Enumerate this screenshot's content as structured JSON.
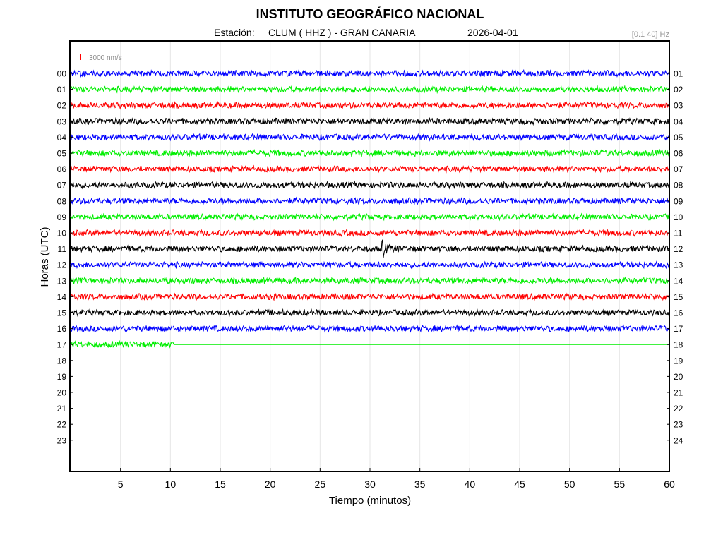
{
  "header": {
    "title": "INSTITUTO GEOGRÁFICO NACIONAL",
    "station_label": "Estación:",
    "station_name": "CLUM ( HHZ ) - GRAN CANARIA",
    "date": "2026-04-01",
    "filter": "[0.1 40] Hz",
    "scale_label": "3000 nm/s"
  },
  "colors": {
    "scale_marker": "#ff0000",
    "trace_cycle": [
      "#0000ff",
      "#00ee00",
      "#ff0000",
      "#000000"
    ],
    "grid": "#e6e6e6",
    "axis": "#000000"
  },
  "chart_data": {
    "type": "line",
    "title": "INSTITUTO GEOGRÁFICO NACIONAL",
    "xlabel": "Tiempo (minutos)",
    "ylabel": "Horas (UTC)",
    "xlim": [
      0,
      60
    ],
    "xticks": [
      5,
      10,
      15,
      20,
      25,
      30,
      35,
      40,
      45,
      50,
      55,
      60
    ],
    "grid": true,
    "left_labels": [
      "00",
      "01",
      "02",
      "03",
      "04",
      "05",
      "06",
      "07",
      "08",
      "09",
      "10",
      "11",
      "12",
      "13",
      "14",
      "15",
      "16",
      "17",
      "18",
      "19",
      "20",
      "21",
      "22",
      "23"
    ],
    "right_labels": [
      "01",
      "02",
      "03",
      "04",
      "05",
      "06",
      "07",
      "08",
      "09",
      "10",
      "11",
      "12",
      "13",
      "14",
      "15",
      "16",
      "17",
      "18",
      "19",
      "20",
      "21",
      "22",
      "23",
      "24"
    ],
    "traces": [
      {
        "hour": "00",
        "color": "#0000ff",
        "end_minute": 60
      },
      {
        "hour": "01",
        "color": "#00ee00",
        "end_minute": 60
      },
      {
        "hour": "02",
        "color": "#ff0000",
        "end_minute": 60
      },
      {
        "hour": "03",
        "color": "#000000",
        "end_minute": 60
      },
      {
        "hour": "04",
        "color": "#0000ff",
        "end_minute": 60
      },
      {
        "hour": "05",
        "color": "#00ee00",
        "end_minute": 60
      },
      {
        "hour": "06",
        "color": "#ff0000",
        "end_minute": 60
      },
      {
        "hour": "07",
        "color": "#000000",
        "end_minute": 60
      },
      {
        "hour": "08",
        "color": "#0000ff",
        "end_minute": 60
      },
      {
        "hour": "09",
        "color": "#00ee00",
        "end_minute": 60
      },
      {
        "hour": "10",
        "color": "#ff0000",
        "end_minute": 60
      },
      {
        "hour": "11",
        "color": "#000000",
        "end_minute": 60,
        "event_minute": 31.2
      },
      {
        "hour": "12",
        "color": "#0000ff",
        "end_minute": 60
      },
      {
        "hour": "13",
        "color": "#00ee00",
        "end_minute": 60
      },
      {
        "hour": "14",
        "color": "#ff0000",
        "end_minute": 60
      },
      {
        "hour": "15",
        "color": "#000000",
        "end_minute": 60
      },
      {
        "hour": "16",
        "color": "#0000ff",
        "end_minute": 60
      },
      {
        "hour": "17",
        "color": "#00ee00",
        "end_minute": 10.4
      }
    ]
  }
}
